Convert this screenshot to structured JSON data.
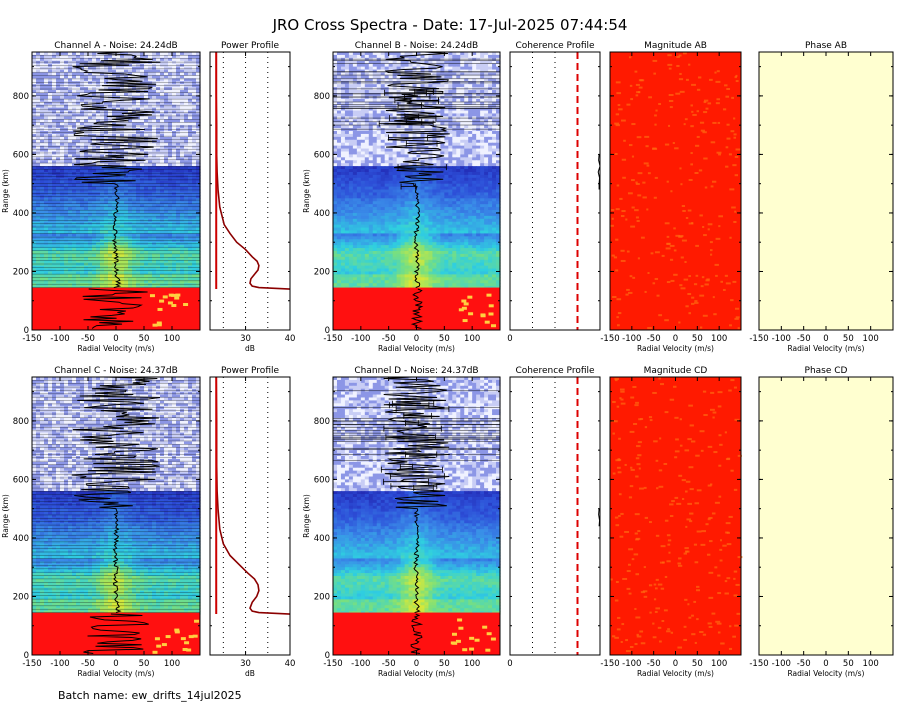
{
  "title": "JRO Cross Spectra - Date: 17-Jul-2025 07:44:54",
  "footer": "Batch name: ew_drifts_14jul2025",
  "colors": {
    "map": [
      "#1e1ea8",
      "#2d4fd8",
      "#3a8be8",
      "#2fcfe0",
      "#7de07a",
      "#d8e838",
      "#f3b024",
      "#e84018"
    ],
    "red_block": "#ff1010",
    "magnitude_bg": "#ff1a00",
    "magnitude_speckle": "#ff6a10",
    "phase_bg": "#ffffd0",
    "noise_bg": "#f0f2ff",
    "noise_dot": "#8c96e6",
    "profile_line": "#8b0000",
    "coherence_line": "#dd0000"
  },
  "chart_data": [
    {
      "type": "heatmap",
      "title": "Channel A - Noise: 24.24dB",
      "xlabel": "Radial Velocity (m/s)",
      "ylabel": "Range (km)",
      "xlim": [
        -150,
        150
      ],
      "ylim": [
        0,
        950
      ],
      "xticks": [
        -150,
        -100,
        -50,
        0,
        50,
        100
      ],
      "yticks": [
        0,
        200,
        400,
        600,
        800
      ],
      "red_block_below_km": 145,
      "doppler_shift": {
        "range_km": [
          150,
          180,
          250,
          300,
          350,
          400,
          450,
          500
        ],
        "velocity_ms": [
          5,
          2,
          0,
          -2,
          -1,
          0,
          2,
          0
        ]
      }
    },
    {
      "type": "line",
      "title": "Power Profile",
      "xlabel": "dB",
      "xlim": [
        22,
        40
      ],
      "ylim": [
        0,
        950
      ],
      "xticks": [
        30,
        40
      ],
      "gridlines_db": [
        25,
        30,
        35
      ],
      "x": [
        40,
        33,
        31.5,
        31,
        31.2,
        32,
        32.8,
        33,
        32.6,
        31.5,
        30,
        28,
        26.5,
        25.2,
        24.2,
        23.8,
        23.6,
        23.5,
        23.5,
        23.4,
        23.4
      ],
      "y": [
        140,
        145,
        150,
        160,
        175,
        190,
        205,
        220,
        235,
        250,
        275,
        300,
        330,
        360,
        420,
        480,
        540,
        600,
        700,
        800,
        950
      ]
    },
    {
      "type": "heatmap",
      "title": "Channel B - Noise: 24.24dB",
      "xlabel": "Radial Velocity (m/s)",
      "ylabel": "Range (km)",
      "xlim": [
        -150,
        150
      ],
      "ylim": [
        0,
        950
      ],
      "xticks": [
        -150,
        -100,
        -50,
        0,
        50,
        100
      ],
      "yticks": [
        0,
        200,
        400,
        600,
        800
      ],
      "red_block_below_km": 145,
      "doppler_shift": {
        "range_km": [
          150,
          180,
          250,
          300,
          350,
          400,
          450,
          500
        ],
        "velocity_ms": [
          3,
          0,
          1,
          -2,
          0,
          2,
          0,
          -2
        ]
      }
    },
    {
      "type": "line",
      "title": "Coherence Profile",
      "xlim": [
        0,
        1
      ],
      "ylim": [
        0,
        950
      ],
      "xticks": [
        0
      ],
      "gridlines": [
        0.25,
        0.5
      ],
      "threshold": 0.75,
      "x": [
        0.99,
        0.99,
        0.995,
        0.98,
        1.0,
        0.985,
        0.99
      ],
      "y": [
        480,
        500,
        520,
        540,
        560,
        580,
        600
      ]
    },
    {
      "type": "heatmap",
      "title": "Magnitude AB",
      "xlabel": "Radial Velocity (m/s)",
      "xlim": [
        -150,
        150
      ],
      "xticks": [
        -150,
        -100,
        -50,
        0,
        50,
        100
      ]
    },
    {
      "type": "heatmap",
      "title": "Phase AB",
      "xlabel": "Radial Velocity (m/s)",
      "xlim": [
        -150,
        150
      ],
      "xticks": [
        -150,
        -100,
        -50,
        0,
        50,
        100
      ]
    },
    {
      "type": "heatmap",
      "title": "Channel C - Noise: 24.37dB",
      "xlabel": "Radial Velocity (m/s)",
      "ylabel": "Range (km)",
      "xlim": [
        -150,
        150
      ],
      "ylim": [
        0,
        950
      ],
      "xticks": [
        -150,
        -100,
        -50,
        0,
        50,
        100
      ],
      "yticks": [
        0,
        200,
        400,
        600,
        800
      ],
      "red_block_below_km": 145,
      "doppler_shift": {
        "range_km": [
          150,
          180,
          250,
          300,
          350,
          400,
          450,
          500
        ],
        "velocity_ms": [
          4,
          1,
          -1,
          0,
          -2,
          1,
          0,
          2
        ]
      }
    },
    {
      "type": "line",
      "title": "Power Profile",
      "xlabel": "dB",
      "xlim": [
        22,
        40
      ],
      "ylim": [
        0,
        950
      ],
      "xticks": [
        30,
        40
      ],
      "gridlines_db": [
        25,
        30,
        35
      ],
      "x": [
        40,
        33,
        31.5,
        31,
        31.5,
        32.5,
        33,
        32.8,
        32,
        30.5,
        28.5,
        26.5,
        25,
        24.2,
        23.8,
        23.6,
        23.5,
        23.5,
        23.4
      ],
      "y": [
        140,
        145,
        150,
        160,
        180,
        200,
        220,
        240,
        260,
        280,
        310,
        340,
        380,
        430,
        500,
        560,
        650,
        800,
        950
      ]
    },
    {
      "type": "heatmap",
      "title": "Channel D - Noise: 24.37dB",
      "xlabel": "Radial Velocity (m/s)",
      "ylabel": "Range (km)",
      "xlim": [
        -150,
        150
      ],
      "ylim": [
        0,
        950
      ],
      "xticks": [
        -150,
        -100,
        -50,
        0,
        50,
        100
      ],
      "yticks": [
        0,
        200,
        400,
        600,
        800
      ],
      "red_block_below_km": 145,
      "doppler_shift": {
        "range_km": [
          150,
          180,
          250,
          300,
          350,
          400,
          450,
          500
        ],
        "velocity_ms": [
          2,
          0,
          2,
          -1,
          0,
          1,
          -1,
          0
        ]
      }
    },
    {
      "type": "line",
      "title": "Coherence Profile",
      "xlim": [
        0,
        1
      ],
      "ylim": [
        0,
        950
      ],
      "xticks": [
        0
      ],
      "gridlines": [
        0.25,
        0.5
      ],
      "threshold": 0.75,
      "x": [
        0.99,
        0.995,
        0.985,
        0.99
      ],
      "y": [
        440,
        460,
        480,
        500
      ]
    },
    {
      "type": "heatmap",
      "title": "Magnitude CD",
      "xlabel": "Radial Velocity (m/s)",
      "xlim": [
        -150,
        150
      ],
      "xticks": [
        -150,
        -100,
        -50,
        0,
        50,
        100
      ]
    },
    {
      "type": "heatmap",
      "title": "Phase CD",
      "xlabel": "Radial Velocity (m/s)",
      "xlim": [
        -150,
        150
      ],
      "xticks": [
        -150,
        -100,
        -50,
        0,
        50,
        100
      ]
    }
  ]
}
